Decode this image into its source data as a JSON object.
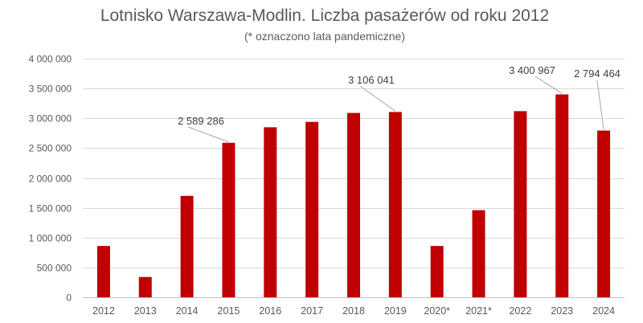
{
  "chart_data": {
    "type": "bar",
    "title": "Lotnisko Warszawa-Modlin. Liczba pasażerów od roku 2012",
    "subtitle": "(* oznaczono lata pandemiczne)",
    "categories": [
      "2012",
      "2013",
      "2014",
      "2015",
      "2016",
      "2017",
      "2018",
      "2019",
      "2020*",
      "2021*",
      "2022",
      "2023",
      "2024"
    ],
    "values": [
      860000,
      340000,
      1700000,
      2589286,
      2850000,
      2940000,
      3090000,
      3106041,
      860000,
      1460000,
      3120000,
      3400967,
      2794464
    ],
    "ylim": [
      0,
      4000000
    ],
    "yticks": [
      0,
      500000,
      1000000,
      1500000,
      2000000,
      2500000,
      3000000,
      3500000,
      4000000
    ],
    "ytick_labels": [
      "0",
      "500 000",
      "1 000 000",
      "1 500 000",
      "2 000 000",
      "2 500 000",
      "3 000 000",
      "3 500 000",
      "4 000 000"
    ],
    "data_labels": [
      {
        "category": "2015",
        "text": "2 589 286"
      },
      {
        "category": "2019",
        "text": "3 106 041"
      },
      {
        "category": "2023",
        "text": "3 400 967"
      },
      {
        "category": "2024",
        "text": "2 794 464"
      }
    ],
    "grid": true,
    "bar_color": "#c00000"
  }
}
